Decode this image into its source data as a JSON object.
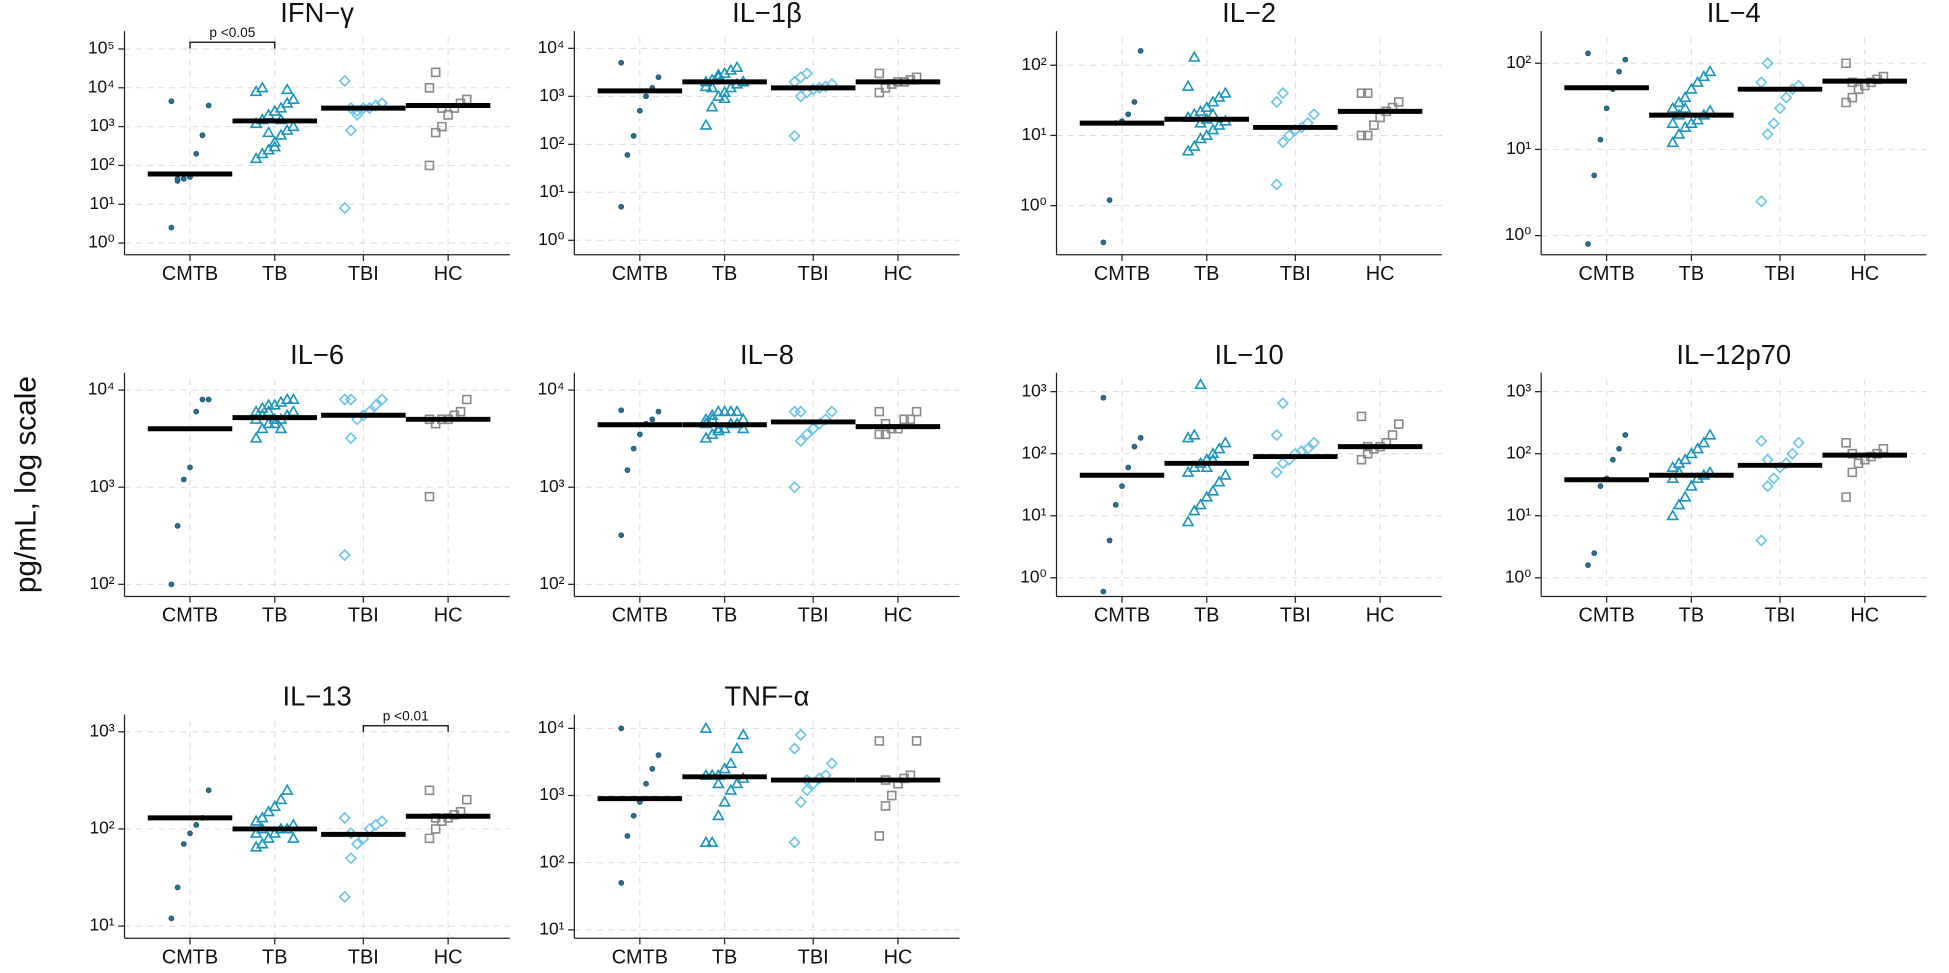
{
  "ylabel": "pg/mL, log scale",
  "chart_data": [
    {
      "type": "strip",
      "title": "IFN−γ",
      "categories": [
        "CMTB",
        "TB",
        "TBI",
        "HC"
      ],
      "log": true,
      "grid": true,
      "colors": [
        "#2d6f8e",
        "#1b93bb",
        "#6cc3e6",
        "#8a8a8a"
      ],
      "markers": [
        "circle",
        "triangle",
        "diamond",
        "square"
      ],
      "ylim": [
        0.5,
        200000
      ],
      "yticks": [
        {
          "value": 1,
          "label": "10⁰"
        },
        {
          "value": 10,
          "label": "10¹"
        },
        {
          "value": 100,
          "label": "10²"
        },
        {
          "value": 1000,
          "label": "10³"
        },
        {
          "value": 10000,
          "label": "10⁴"
        },
        {
          "value": 100000,
          "label": "10⁵"
        }
      ],
      "values": [
        [
          2.5,
          40,
          45,
          50,
          200,
          600,
          3500,
          4500,
          45
        ],
        [
          150,
          200,
          250,
          400,
          600,
          800,
          1000,
          1200,
          1500,
          2000,
          2500,
          3000,
          4000,
          5000,
          8000,
          10000,
          700,
          300,
          1500,
          9000
        ],
        [
          8,
          800,
          2000,
          3000,
          3000,
          3500,
          4000,
          15000,
          3000,
          2500
        ],
        [
          100,
          700,
          1000,
          2000,
          3000,
          4000,
          5000,
          10000,
          25000,
          3000
        ]
      ],
      "medians": [
        60,
        1400,
        3000,
        3500
      ],
      "annotations": [
        {
          "text": "p <0.05",
          "groups": [
            0,
            1
          ]
        }
      ]
    },
    {
      "type": "strip",
      "title": "IL−1β",
      "categories": [
        "CMTB",
        "TB",
        "TBI",
        "HC"
      ],
      "log": true,
      "grid": true,
      "colors": [
        "#2d6f8e",
        "#1b93bb",
        "#6cc3e6",
        "#8a8a8a"
      ],
      "markers": [
        "circle",
        "triangle",
        "diamond",
        "square"
      ],
      "ylim": [
        0.5,
        17000
      ],
      "yticks": [
        {
          "value": 1,
          "label": "10⁰"
        },
        {
          "value": 10,
          "label": "10¹"
        },
        {
          "value": 100,
          "label": "10²"
        },
        {
          "value": 1000,
          "label": "10³"
        },
        {
          "value": 10000,
          "label": "10⁴"
        }
      ],
      "values": [
        [
          5,
          60,
          150,
          500,
          1000,
          1500,
          2500,
          5000
        ],
        [
          250,
          600,
          1000,
          1200,
          1500,
          1800,
          2000,
          2000,
          2200,
          2500,
          3000,
          3500,
          4000,
          2000,
          1600,
          1500,
          2800,
          900
        ],
        [
          150,
          1000,
          1200,
          1400,
          1500,
          1600,
          1800,
          2000,
          2500,
          3000
        ],
        [
          1200,
          1500,
          1800,
          2000,
          2000,
          2200,
          2500,
          3000
        ]
      ],
      "medians": [
        1300,
        2000,
        1500,
        2000
      ]
    },
    {
      "type": "strip",
      "title": "IL−2",
      "categories": [
        "CMTB",
        "TB",
        "TBI",
        "HC"
      ],
      "log": true,
      "grid": true,
      "colors": [
        "#2d6f8e",
        "#1b93bb",
        "#6cc3e6",
        "#8a8a8a"
      ],
      "markers": [
        "circle",
        "triangle",
        "diamond",
        "square"
      ],
      "ylim": [
        0.2,
        250
      ],
      "yticks": [
        {
          "value": 1,
          "label": "10⁰"
        },
        {
          "value": 10,
          "label": "10¹"
        },
        {
          "value": 100,
          "label": "10²"
        }
      ],
      "values": [
        [
          0.3,
          1.2,
          15,
          16,
          20,
          30,
          160
        ],
        [
          6,
          7,
          9,
          10,
          12,
          14,
          16,
          18,
          20,
          22,
          25,
          30,
          35,
          40,
          50,
          130,
          15,
          17,
          20
        ],
        [
          2,
          8,
          10,
          12,
          13,
          15,
          20,
          30,
          40
        ],
        [
          10,
          10,
          14,
          18,
          22,
          25,
          30,
          40,
          40
        ]
      ],
      "medians": [
        15,
        17,
        13,
        22
      ]
    },
    {
      "type": "strip",
      "title": "IL−4",
      "categories": [
        "CMTB",
        "TB",
        "TBI",
        "HC"
      ],
      "log": true,
      "grid": true,
      "colors": [
        "#2d6f8e",
        "#1b93bb",
        "#6cc3e6",
        "#8a8a8a"
      ],
      "markers": [
        "circle",
        "triangle",
        "diamond",
        "square"
      ],
      "ylim": [
        0.6,
        200
      ],
      "yticks": [
        {
          "value": 1,
          "label": "10⁰"
        },
        {
          "value": 10,
          "label": "10¹"
        },
        {
          "value": 100,
          "label": "10²"
        }
      ],
      "values": [
        [
          0.8,
          5,
          13,
          30,
          50,
          80,
          110,
          130
        ],
        [
          12,
          15,
          18,
          20,
          22,
          25,
          28,
          30,
          35,
          40,
          50,
          60,
          70,
          80,
          20,
          25,
          30
        ],
        [
          2.5,
          15,
          20,
          30,
          40,
          50,
          55,
          60,
          100
        ],
        [
          35,
          40,
          50,
          55,
          60,
          65,
          70,
          100,
          60
        ]
      ],
      "medians": [
        52,
        25,
        50,
        62
      ]
    },
    {
      "type": "strip",
      "title": "IL−6",
      "categories": [
        "CMTB",
        "TB",
        "TBI",
        "HC"
      ],
      "log": true,
      "grid": true,
      "colors": [
        "#2d6f8e",
        "#1b93bb",
        "#6cc3e6",
        "#8a8a8a"
      ],
      "markers": [
        "circle",
        "triangle",
        "diamond",
        "square"
      ],
      "ylim": [
        75,
        13000
      ],
      "yticks": [
        {
          "value": 100,
          "label": "10²"
        },
        {
          "value": 1000,
          "label": "10³"
        },
        {
          "value": 10000,
          "label": "10⁴"
        }
      ],
      "values": [
        [
          100,
          400,
          1200,
          1600,
          6000,
          8000,
          8000
        ],
        [
          3200,
          4000,
          4500,
          5000,
          5000,
          5500,
          6000,
          6000,
          6500,
          7000,
          7000,
          7500,
          8000,
          8000,
          5000,
          5500,
          6000,
          4500,
          4000
        ],
        [
          200,
          3200,
          5000,
          5500,
          6000,
          7000,
          8000,
          8000,
          8000
        ],
        [
          800,
          4500,
          5000,
          5000,
          5500,
          6000,
          8000,
          5000
        ]
      ],
      "medians": [
        4000,
        5200,
        5500,
        5000
      ]
    },
    {
      "type": "strip",
      "title": "IL−8",
      "categories": [
        "CMTB",
        "TB",
        "TBI",
        "HC"
      ],
      "log": true,
      "grid": true,
      "colors": [
        "#2d6f8e",
        "#1b93bb",
        "#6cc3e6",
        "#8a8a8a"
      ],
      "markers": [
        "circle",
        "triangle",
        "diamond",
        "square"
      ],
      "ylim": [
        75,
        13000
      ],
      "yticks": [
        {
          "value": 100,
          "label": "10²"
        },
        {
          "value": 1000,
          "label": "10³"
        },
        {
          "value": 10000,
          "label": "10⁴"
        }
      ],
      "values": [
        [
          320,
          1500,
          2500,
          3500,
          4500,
          5000,
          6000,
          6200
        ],
        [
          3200,
          3500,
          4000,
          4000,
          4500,
          4500,
          5000,
          5000,
          5500,
          6000,
          6000,
          6000,
          6000,
          4000,
          4500,
          5000,
          3800
        ],
        [
          1000,
          3000,
          3500,
          4000,
          4500,
          5000,
          6000,
          6000,
          6000
        ],
        [
          3500,
          3500,
          4000,
          4000,
          5000,
          5000,
          6000,
          6000,
          4500
        ]
      ],
      "medians": [
        4400,
        4400,
        4700,
        4200
      ]
    },
    {
      "type": "strip",
      "title": "IL−10",
      "categories": [
        "CMTB",
        "TB",
        "TBI",
        "HC"
      ],
      "log": true,
      "grid": true,
      "colors": [
        "#2d6f8e",
        "#1b93bb",
        "#6cc3e6",
        "#8a8a8a"
      ],
      "markers": [
        "circle",
        "triangle",
        "diamond",
        "square"
      ],
      "ylim": [
        0.5,
        1600
      ],
      "yticks": [
        {
          "value": 1,
          "label": "10⁰"
        },
        {
          "value": 10,
          "label": "10¹"
        },
        {
          "value": 100,
          "label": "10²"
        },
        {
          "value": 1000,
          "label": "10³"
        }
      ],
      "values": [
        [
          0.6,
          4,
          15,
          30,
          60,
          130,
          180,
          800
        ],
        [
          8,
          12,
          15,
          20,
          25,
          35,
          45,
          50,
          60,
          70,
          80,
          100,
          120,
          150,
          180,
          200,
          1300,
          60,
          80
        ],
        [
          50,
          70,
          80,
          100,
          110,
          120,
          150,
          200,
          650
        ],
        [
          80,
          100,
          120,
          130,
          150,
          200,
          300,
          400,
          130
        ]
      ],
      "medians": [
        45,
        70,
        90,
        130
      ]
    },
    {
      "type": "strip",
      "title": "IL−12p70",
      "categories": [
        "CMTB",
        "TB",
        "TBI",
        "HC"
      ],
      "log": true,
      "grid": true,
      "colors": [
        "#2d6f8e",
        "#1b93bb",
        "#6cc3e6",
        "#8a8a8a"
      ],
      "markers": [
        "circle",
        "triangle",
        "diamond",
        "square"
      ],
      "ylim": [
        0.5,
        1600
      ],
      "yticks": [
        {
          "value": 1,
          "label": "10⁰"
        },
        {
          "value": 10,
          "label": "10¹"
        },
        {
          "value": 100,
          "label": "10²"
        },
        {
          "value": 1000,
          "label": "10³"
        }
      ],
      "values": [
        [
          1.6,
          2.5,
          30,
          40,
          80,
          120,
          200
        ],
        [
          10,
          15,
          20,
          30,
          40,
          45,
          50,
          60,
          70,
          80,
          100,
          120,
          150,
          200,
          40,
          50
        ],
        [
          4,
          30,
          40,
          60,
          70,
          100,
          150,
          160,
          80
        ],
        [
          20,
          50,
          70,
          80,
          90,
          100,
          120,
          150,
          100
        ]
      ],
      "medians": [
        38,
        45,
        65,
        95
      ]
    },
    {
      "type": "strip",
      "title": "IL−13",
      "categories": [
        "CMTB",
        "TB",
        "TBI",
        "HC"
      ],
      "log": true,
      "grid": true,
      "colors": [
        "#2d6f8e",
        "#1b93bb",
        "#6cc3e6",
        "#8a8a8a"
      ],
      "markers": [
        "circle",
        "triangle",
        "diamond",
        "square"
      ],
      "ylim": [
        7.5,
        1300
      ],
      "yticks": [
        {
          "value": 10,
          "label": "10¹"
        },
        {
          "value": 100,
          "label": "10²"
        },
        {
          "value": 1000,
          "label": "10³"
        }
      ],
      "values": [
        [
          12,
          25,
          70,
          90,
          110,
          130,
          250
        ],
        [
          65,
          70,
          80,
          90,
          100,
          100,
          110,
          120,
          130,
          150,
          170,
          200,
          250,
          80,
          90,
          100
        ],
        [
          20,
          50,
          70,
          80,
          100,
          110,
          120,
          130,
          90
        ],
        [
          80,
          100,
          120,
          130,
          140,
          150,
          200,
          250,
          130
        ]
      ],
      "medians": [
        130,
        100,
        88,
        135
      ],
      "annotations": [
        {
          "text": "p <0.01",
          "groups": [
            2,
            3
          ]
        }
      ]
    },
    {
      "type": "strip",
      "title": "TNF−α",
      "categories": [
        "CMTB",
        "TB",
        "TBI",
        "HC"
      ],
      "log": true,
      "grid": true,
      "colors": [
        "#2d6f8e",
        "#1b93bb",
        "#6cc3e6",
        "#8a8a8a"
      ],
      "markers": [
        "circle",
        "triangle",
        "diamond",
        "square"
      ],
      "ylim": [
        7.5,
        13000
      ],
      "yticks": [
        {
          "value": 10,
          "label": "10¹"
        },
        {
          "value": 100,
          "label": "10²"
        },
        {
          "value": 1000,
          "label": "10³"
        },
        {
          "value": 10000,
          "label": "10⁴"
        }
      ],
      "values": [
        [
          50,
          250,
          500,
          800,
          1500,
          2500,
          4000,
          10000
        ],
        [
          200,
          200,
          500,
          800,
          1200,
          1500,
          1800,
          2000,
          2000,
          2000,
          2500,
          3000,
          5000,
          8000,
          10000,
          2000,
          1500
        ],
        [
          200,
          800,
          1200,
          1500,
          1800,
          2000,
          3000,
          5000,
          8000,
          1700
        ],
        [
          250,
          700,
          1000,
          1500,
          1800,
          2000,
          6500,
          6500,
          1700
        ]
      ],
      "medians": [
        900,
        1900,
        1700,
        1700
      ]
    }
  ]
}
